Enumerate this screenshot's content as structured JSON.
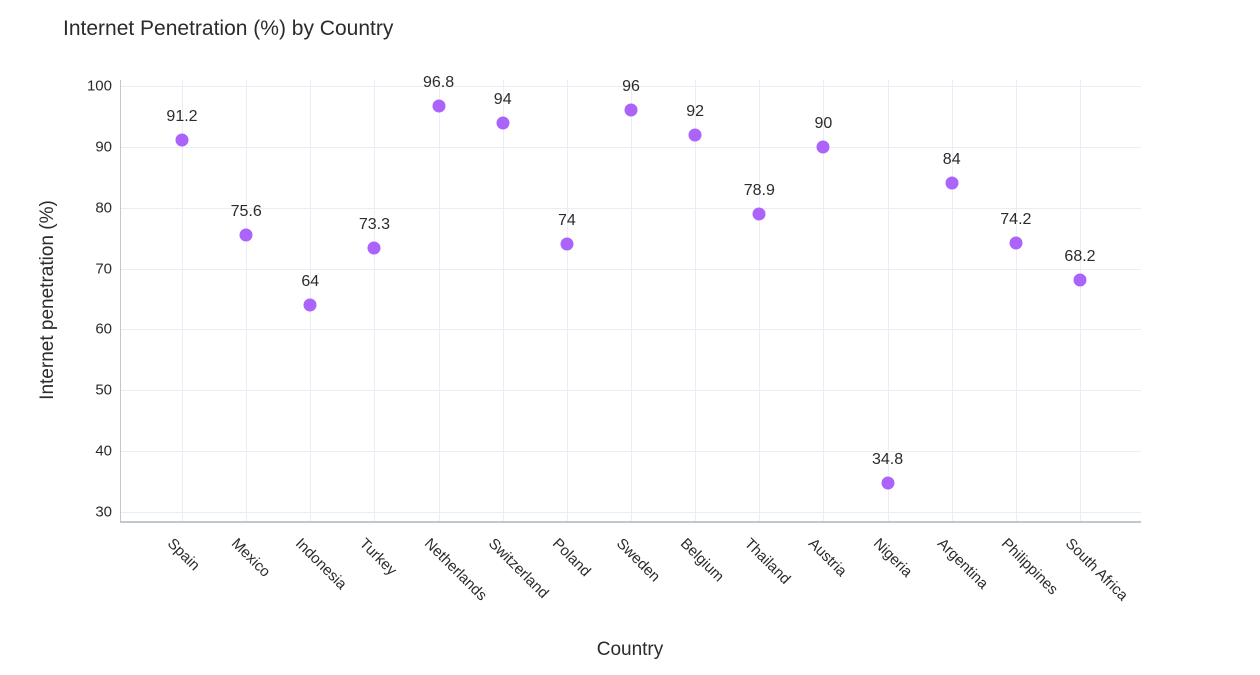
{
  "chart_data": {
    "type": "scatter",
    "title": "Internet Penetration (%) by Country",
    "xlabel": "Country",
    "ylabel": "Internet penetration (%)",
    "categories": [
      "Spain",
      "Mexico",
      "Indonesia",
      "Turkey",
      "Netherlands",
      "Switzerland",
      "Poland",
      "Sweden",
      "Belgium",
      "Thailand",
      "Austria",
      "Nigeria",
      "Argentina",
      "Philippines",
      "South Africa"
    ],
    "values": [
      91.2,
      75.6,
      64,
      73.3,
      96.8,
      94,
      74,
      96,
      92,
      78.9,
      90,
      34.8,
      84,
      74.2,
      68.2
    ],
    "point_labels": [
      "91.2",
      "75.6",
      "64",
      "73.3",
      "96.8",
      "94",
      "74",
      "96",
      "92",
      "78.9",
      "90",
      "34.8",
      "84",
      "74.2",
      "68.2"
    ],
    "yticks": [
      30,
      40,
      50,
      60,
      70,
      80,
      90,
      100
    ],
    "ylim": [
      28.5,
      101
    ],
    "grid": true,
    "legend": false,
    "marker_color": "#ab63fa",
    "grid_color": "#e9eef6",
    "axis_line_color": "#c0c7ce",
    "font_color": "#2b2b2b",
    "background_color": "#ffffff"
  }
}
